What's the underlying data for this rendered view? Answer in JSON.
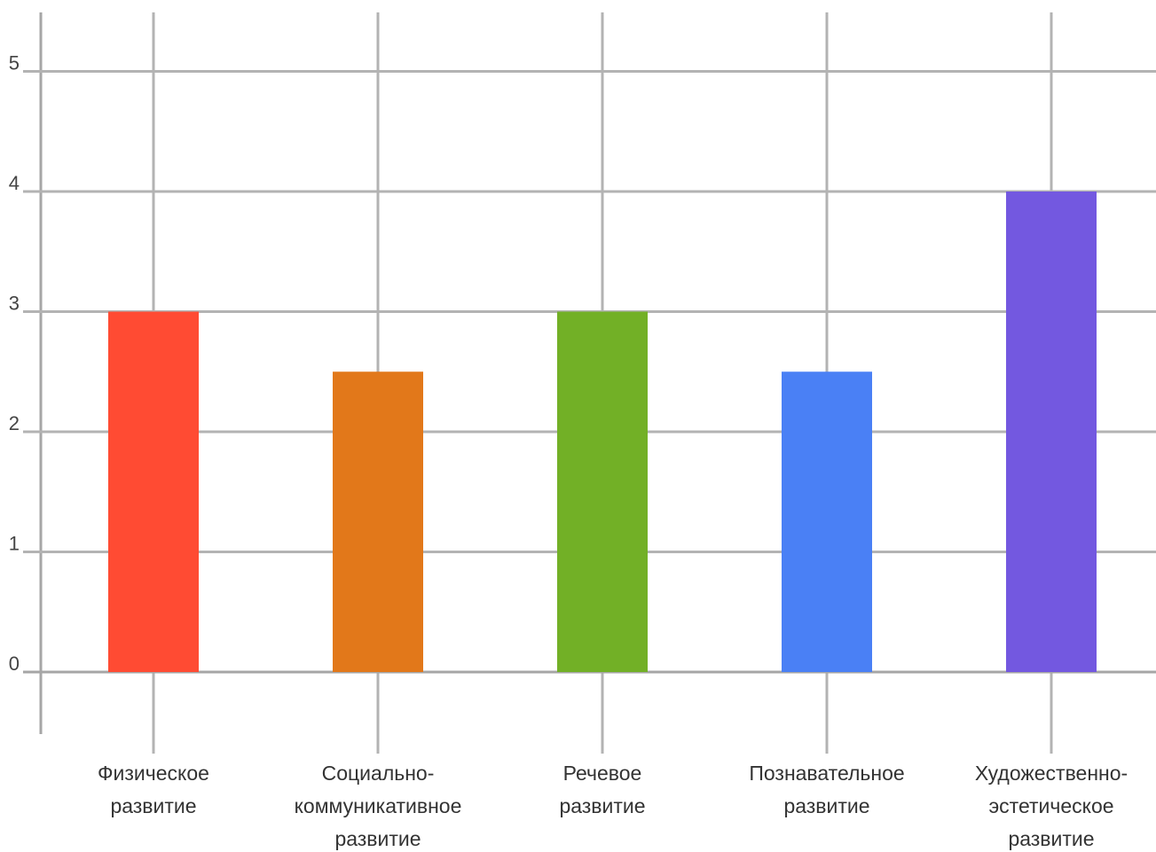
{
  "chart_data": {
    "type": "bar",
    "categories": [
      [
        "Физическое",
        "развитие"
      ],
      [
        "Социально-",
        "коммуникативное",
        "развитие"
      ],
      [
        "Речевое",
        "развитие"
      ],
      [
        "Познавательное",
        "развитие"
      ],
      [
        "Художественно-",
        "эстетическое",
        "развитие"
      ]
    ],
    "values": [
      3,
      2.5,
      3,
      2.5,
      4
    ],
    "colors": [
      "#ff4b33",
      "#e2781a",
      "#72b026",
      "#4a80f5",
      "#7358e0"
    ],
    "ylim": [
      -0.5,
      5.5
    ],
    "yticks": [
      "0",
      "1",
      "2",
      "3",
      "4",
      "5"
    ],
    "grid": true,
    "title": "",
    "xlabel": "",
    "ylabel": ""
  }
}
